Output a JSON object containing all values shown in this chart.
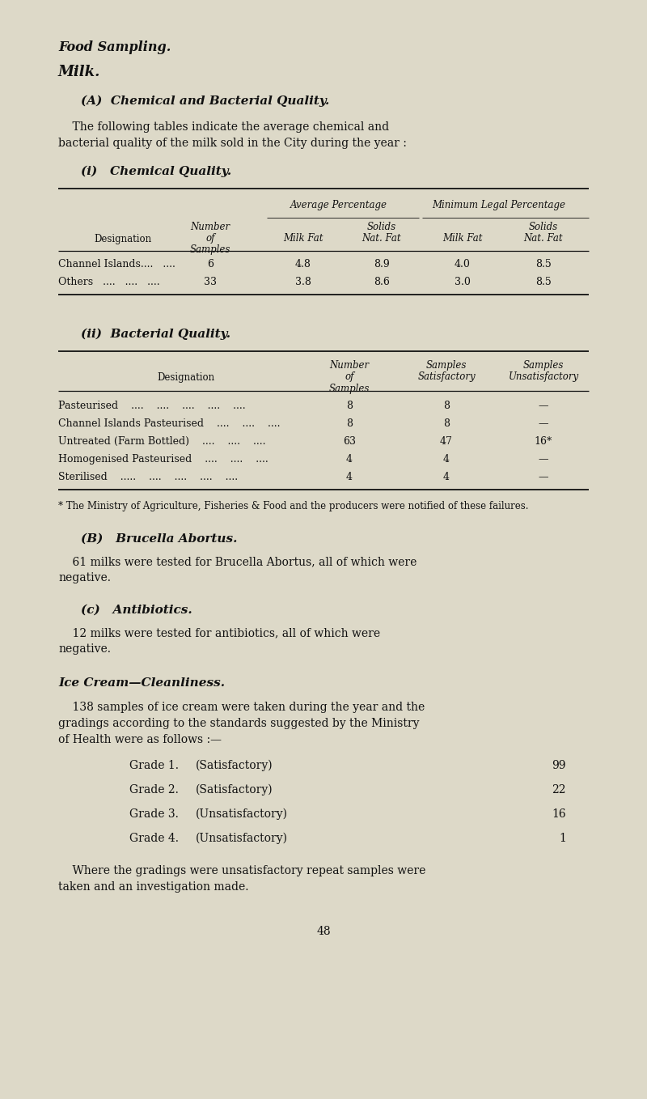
{
  "bg_color": "#ddd9c8",
  "text_color": "#111111",
  "page_width": 8.0,
  "page_height": 13.58,
  "title1": "Food Sampling.",
  "title2": "Milk.",
  "section_a_header": "(A)  Chemical and Bacterial Quality.",
  "section_a_line1": "    The following tables indicate the average chemical and",
  "section_a_line2": "bacterial quality of the milk sold in the City during the year :",
  "chem_title": "(i)   Chemical Quality.",
  "chem_avg_pct": "Average Percentage",
  "chem_min_legal": "Minimum Legal Percentage",
  "chem_designation": "Designation",
  "chem_num_samples": [
    "Number",
    "of",
    "Samples"
  ],
  "chem_milk_fat": "Milk Fat",
  "chem_solids_nat_fat": [
    "Solids",
    "Nat. Fat"
  ],
  "chem_rows": [
    [
      "Channel Islands....   ....",
      "6",
      "4.8",
      "8.9",
      "4.0",
      "8.5"
    ],
    [
      "Others   ....   ....   ....",
      "33",
      "3.8",
      "8.6",
      "3.0",
      "8.5"
    ]
  ],
  "bact_title": "(ii)  Bacterial Quality.",
  "bact_designation": "Designation",
  "bact_num_samples": [
    "Number",
    "of",
    "Samples"
  ],
  "bact_satisfactory": [
    "Samples",
    "Satisfactory"
  ],
  "bact_unsatisfactory": [
    "Samples",
    "Unsatisfactory"
  ],
  "bact_rows": [
    [
      "Pasteurised    ....    ....    ....    ....    ....",
      "8",
      "8",
      "—"
    ],
    [
      "Channel Islands Pasteurised    ....    ....    ....",
      "8",
      "8",
      "—"
    ],
    [
      "Untreated (Farm Bottled)    ....    ....    ....",
      "63",
      "47",
      "16*"
    ],
    [
      "Homogenised Pasteurised    ....    ....    ....",
      "4",
      "4",
      "—"
    ],
    [
      "Sterilised    .....    ....    ....    ....    ....",
      "4",
      "4",
      "—"
    ]
  ],
  "footnote": "* The Ministry of Agriculture, Fisheries & Food and the producers were notified of these failures.",
  "section_b_header": "(B)   Brucella Abortus.",
  "section_b_line1": "    61 milks were tested for Brucella Abortus, all of which were",
  "section_b_line2": "negative.",
  "section_c_header": "(c)   Antibiotics.",
  "section_c_line1": "    12 milks were tested for antibiotics, all of which were",
  "section_c_line2": "negative.",
  "ice_cream_title": "Ice Cream—Cleanliness.",
  "ice_cream_line1": "    138 samples of ice cream were taken during the year and the",
  "ice_cream_line2": "gradings according to the standards suggested by the Ministry",
  "ice_cream_line3": "of Health were as follows :—",
  "grades": [
    [
      "Grade 1.",
      "(Satisfactory)",
      "99"
    ],
    [
      "Grade 2.",
      "(Satisfactory)",
      "22"
    ],
    [
      "Grade 3.",
      "(Unsatisfactory)",
      "16"
    ],
    [
      "Grade 4.",
      "(Unsatisfactory)",
      "1"
    ]
  ],
  "ice_cream_footer1": "    Where the gradings were unsatisfactory repeat samples were",
  "ice_cream_footer2": "taken and an investigation made.",
  "page_number": "48"
}
